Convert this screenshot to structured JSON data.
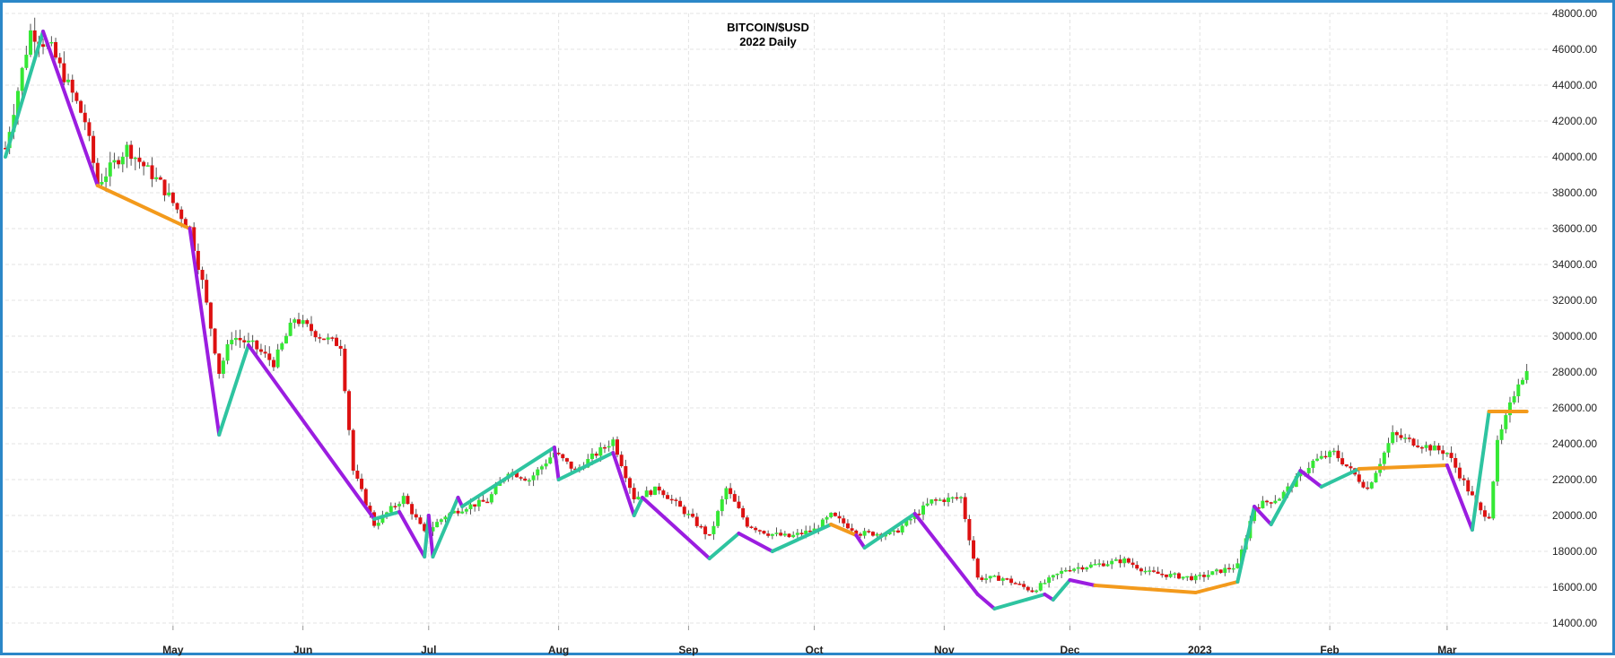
{
  "chart_data": {
    "type": "candlestick",
    "title": "BITCOIN/$USD",
    "subtitle": "2022 Daily",
    "xlabel": "",
    "ylabel": "",
    "ylim": [
      13000,
      48000
    ],
    "xlim": [
      "2022-03-22",
      "2023-03-25"
    ],
    "grid": true,
    "legend": "none",
    "y_ticks": [
      "14000.00",
      "16000.00",
      "18000.00",
      "20000.00",
      "22000.00",
      "24000.00",
      "26000.00",
      "28000.00",
      "30000.00",
      "32000.00",
      "34000.00",
      "36000.00",
      "38000.00",
      "40000.00",
      "42000.00",
      "44000.00",
      "46000.00",
      "48000.00"
    ],
    "x_ticks": [
      {
        "label": "May",
        "date": "2022-05-01"
      },
      {
        "label": "Jun",
        "date": "2022-06-01"
      },
      {
        "label": "Jul",
        "date": "2022-07-01"
      },
      {
        "label": "Aug",
        "date": "2022-08-01"
      },
      {
        "label": "Sep",
        "date": "2022-09-01"
      },
      {
        "label": "Oct",
        "date": "2022-10-01"
      },
      {
        "label": "Nov",
        "date": "2022-11-01"
      },
      {
        "label": "Dec",
        "date": "2022-12-01"
      },
      {
        "label": "2023",
        "date": "2023-01-01"
      },
      {
        "label": "Feb",
        "date": "2023-02-01"
      },
      {
        "label": "Mar",
        "date": "2023-03-01"
      }
    ],
    "colors": {
      "up": "#35e835",
      "down": "#dd1111",
      "wick": "#555555",
      "down_trend": "#9b1de0",
      "up_trend": "#2ec4a0",
      "sideways": "#f39a1c"
    },
    "price_anchors": [
      [
        "2022-03-22",
        40500
      ],
      [
        "2022-03-28",
        47000
      ],
      [
        "2022-04-02",
        46000
      ],
      [
        "2022-04-10",
        42000
      ],
      [
        "2022-04-13",
        38500
      ],
      [
        "2022-04-20",
        40500
      ],
      [
        "2022-04-28",
        38500
      ],
      [
        "2022-05-05",
        36000
      ],
      [
        "2022-05-08",
        33000
      ],
      [
        "2022-05-12",
        28000
      ],
      [
        "2022-05-15",
        30000
      ],
      [
        "2022-05-20",
        29500
      ],
      [
        "2022-05-25",
        28500
      ],
      [
        "2022-05-30",
        31000
      ],
      [
        "2022-06-05",
        30000
      ],
      [
        "2022-06-10",
        29500
      ],
      [
        "2022-06-13",
        22500
      ],
      [
        "2022-06-18",
        19500
      ],
      [
        "2022-06-25",
        21000
      ],
      [
        "2022-06-30",
        19000
      ],
      [
        "2022-07-05",
        20000
      ],
      [
        "2022-07-10",
        20500
      ],
      [
        "2022-07-15",
        20800
      ],
      [
        "2022-07-20",
        22500
      ],
      [
        "2022-07-25",
        22000
      ],
      [
        "2022-07-31",
        23500
      ],
      [
        "2022-08-05",
        22500
      ],
      [
        "2022-08-14",
        24200
      ],
      [
        "2022-08-19",
        21000
      ],
      [
        "2022-08-25",
        21500
      ],
      [
        "2022-09-01",
        20000
      ],
      [
        "2022-09-06",
        18800
      ],
      [
        "2022-09-10",
        21500
      ],
      [
        "2022-09-15",
        19500
      ],
      [
        "2022-09-20",
        19000
      ],
      [
        "2022-09-25",
        18800
      ],
      [
        "2022-10-01",
        19200
      ],
      [
        "2022-10-05",
        20000
      ],
      [
        "2022-10-12",
        19000
      ],
      [
        "2022-10-20",
        19000
      ],
      [
        "2022-10-29",
        20800
      ],
      [
        "2022-11-05",
        21000
      ],
      [
        "2022-11-09",
        16500
      ],
      [
        "2022-11-15",
        16500
      ],
      [
        "2022-11-22",
        15800
      ],
      [
        "2022-11-30",
        17000
      ],
      [
        "2022-12-14",
        17500
      ],
      [
        "2022-12-20",
        16800
      ],
      [
        "2022-12-31",
        16500
      ],
      [
        "2023-01-10",
        17200
      ],
      [
        "2023-01-14",
        20500
      ],
      [
        "2023-01-20",
        21000
      ],
      [
        "2023-01-28",
        23000
      ],
      [
        "2023-02-02",
        23500
      ],
      [
        "2023-02-10",
        21500
      ],
      [
        "2023-02-16",
        24500
      ],
      [
        "2023-02-22",
        24000
      ],
      [
        "2023-03-01",
        23500
      ],
      [
        "2023-03-09",
        20200
      ],
      [
        "2023-03-11",
        20000
      ],
      [
        "2023-03-13",
        24000
      ],
      [
        "2023-03-18",
        27500
      ],
      [
        "2023-03-20",
        28000
      ]
    ],
    "swing_line": [
      {
        "date": "2022-03-22",
        "price": 40000,
        "type": "up_trend"
      },
      {
        "date": "2022-03-31",
        "price": 47000,
        "type": "down_trend"
      },
      {
        "date": "2022-04-13",
        "price": 38400,
        "type": "sideways"
      },
      {
        "date": "2022-05-05",
        "price": 36000,
        "type": "down_trend"
      },
      {
        "date": "2022-05-12",
        "price": 24500,
        "type": "up_trend"
      },
      {
        "date": "2022-05-19",
        "price": 29500,
        "type": "down_trend"
      },
      {
        "date": "2022-06-18",
        "price": 19800,
        "type": "up_trend"
      },
      {
        "date": "2022-06-24",
        "price": 20200,
        "type": "down_trend"
      },
      {
        "date": "2022-06-30",
        "price": 17700,
        "type": "up_trend"
      },
      {
        "date": "2022-07-01",
        "price": 20000,
        "type": "down_trend"
      },
      {
        "date": "2022-07-02",
        "price": 17700,
        "type": "up_trend"
      },
      {
        "date": "2022-07-08",
        "price": 21000,
        "type": "down_trend"
      },
      {
        "date": "2022-07-09",
        "price": 20500,
        "type": "up_trend"
      },
      {
        "date": "2022-07-31",
        "price": 23800,
        "type": "down_trend"
      },
      {
        "date": "2022-08-01",
        "price": 22000,
        "type": "up_trend"
      },
      {
        "date": "2022-08-14",
        "price": 23500,
        "type": "down_trend"
      },
      {
        "date": "2022-08-19",
        "price": 20000,
        "type": "up_trend"
      },
      {
        "date": "2022-08-21",
        "price": 21000,
        "type": "down_trend"
      },
      {
        "date": "2022-09-06",
        "price": 17600,
        "type": "up_trend"
      },
      {
        "date": "2022-09-13",
        "price": 19000,
        "type": "down_trend"
      },
      {
        "date": "2022-09-21",
        "price": 18000,
        "type": "up_trend"
      },
      {
        "date": "2022-10-05",
        "price": 19500,
        "type": "sideways"
      },
      {
        "date": "2022-10-11",
        "price": 18900,
        "type": "down_trend"
      },
      {
        "date": "2022-10-13",
        "price": 18200,
        "type": "up_trend"
      },
      {
        "date": "2022-10-25",
        "price": 20100,
        "type": "down_trend"
      },
      {
        "date": "2022-11-09",
        "price": 15600,
        "type": "down_trend"
      },
      {
        "date": "2022-11-13",
        "price": 14800,
        "type": "up_trend"
      },
      {
        "date": "2022-11-25",
        "price": 15600,
        "type": "down_trend"
      },
      {
        "date": "2022-11-27",
        "price": 15300,
        "type": "up_trend"
      },
      {
        "date": "2022-12-01",
        "price": 16400,
        "type": "down_trend"
      },
      {
        "date": "2022-12-07",
        "price": 16100,
        "type": "sideways"
      },
      {
        "date": "2022-12-31",
        "price": 15700,
        "type": "sideways"
      },
      {
        "date": "2023-01-10",
        "price": 16300,
        "type": "up_trend"
      },
      {
        "date": "2023-01-14",
        "price": 20500,
        "type": "down_trend"
      },
      {
        "date": "2023-01-18",
        "price": 19500,
        "type": "up_trend"
      },
      {
        "date": "2023-01-25",
        "price": 22500,
        "type": "down_trend"
      },
      {
        "date": "2023-01-30",
        "price": 21600,
        "type": "up_trend"
      },
      {
        "date": "2023-02-08",
        "price": 22600,
        "type": "sideways"
      },
      {
        "date": "2023-03-01",
        "price": 22800,
        "type": "down_trend"
      },
      {
        "date": "2023-03-07",
        "price": 19200,
        "type": "up_trend"
      },
      {
        "date": "2023-03-11",
        "price": 25800,
        "type": "sideways"
      },
      {
        "date": "2023-03-20",
        "price": 25800,
        "type": "end"
      }
    ]
  }
}
